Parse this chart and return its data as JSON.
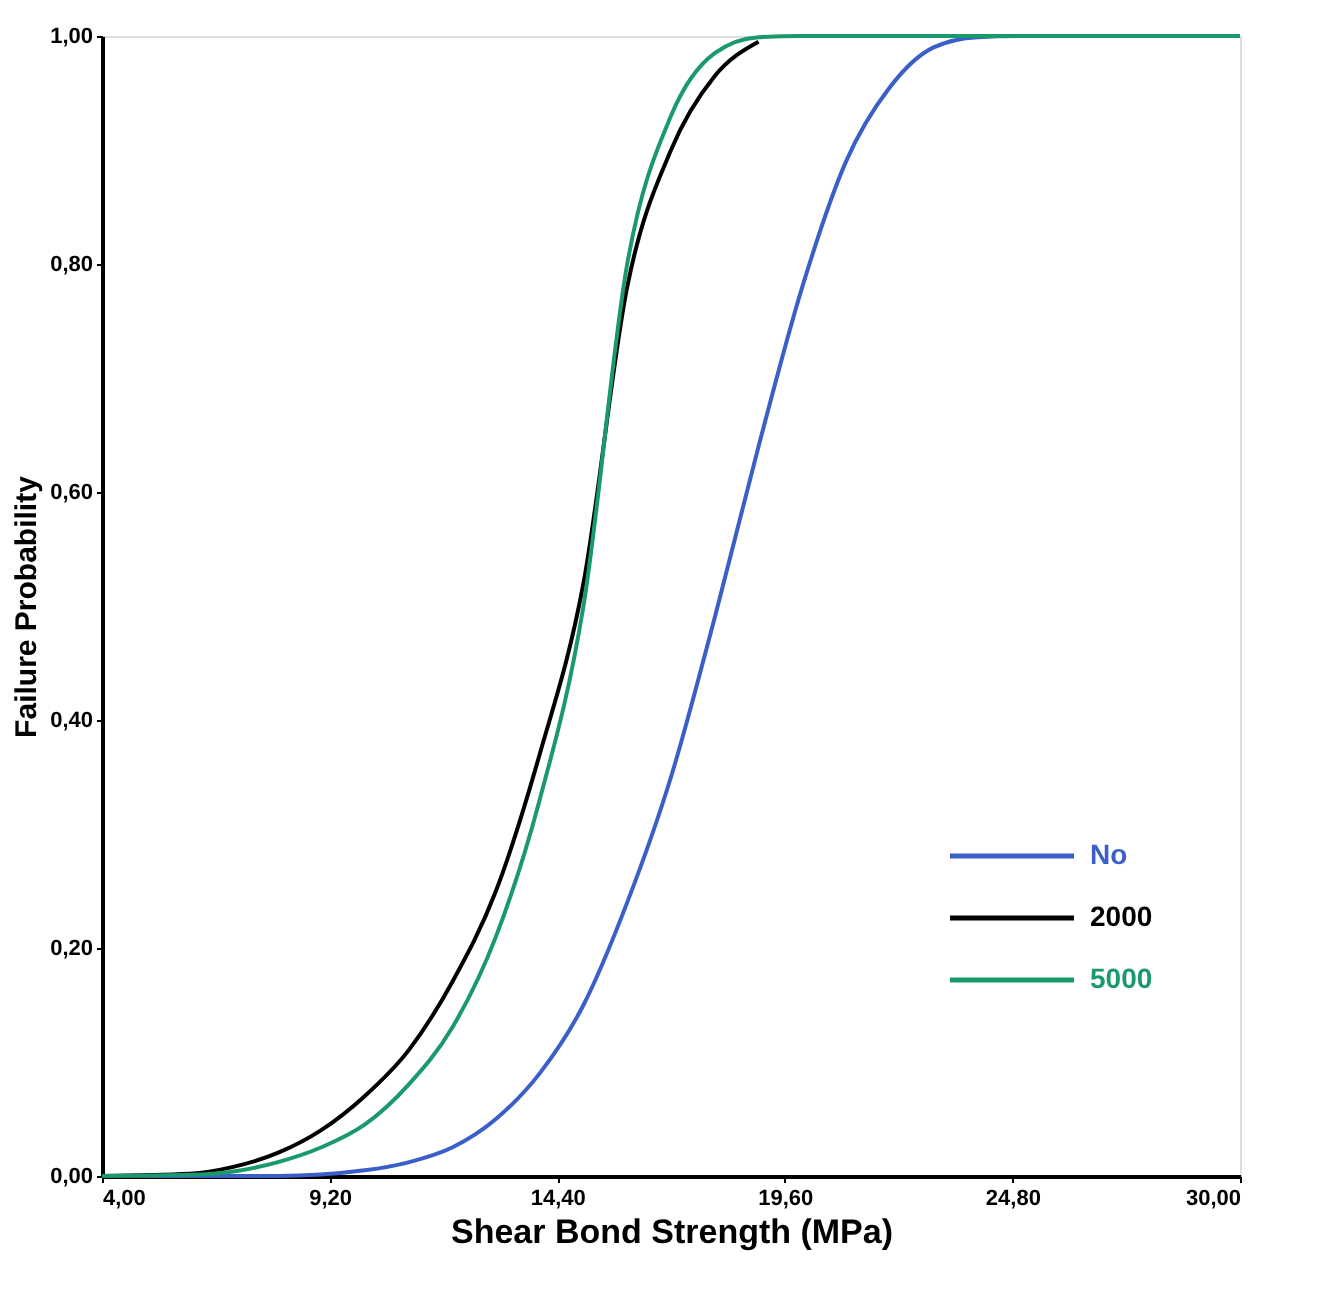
{
  "chart_data": {
    "type": "line",
    "xlabel": "Shear Bond Strength (MPa)",
    "ylabel": "Failure Probability",
    "xlim": [
      4,
      30
    ],
    "xticks": [
      {
        "value": 4,
        "label": "4,00"
      },
      {
        "value": 9.2,
        "label": "9,20"
      },
      {
        "value": 14.4,
        "label": "14,40"
      },
      {
        "value": 19.6,
        "label": "19,60"
      },
      {
        "value": 24.8,
        "label": "24,80"
      },
      {
        "value": 30,
        "label": "30,00"
      }
    ],
    "ylim": [
      0,
      1
    ],
    "yticks": [
      {
        "value": 0,
        "label": "0,00"
      },
      {
        "value": 0.2,
        "label": "0,20"
      },
      {
        "value": 0.4,
        "label": "0,40"
      },
      {
        "value": 0.6,
        "label": "0,60"
      },
      {
        "value": 0.8,
        "label": "0,80"
      },
      {
        "value": 1,
        "label": "1,00"
      }
    ],
    "grid": false,
    "legend": "bottom right",
    "marker": "none",
    "line_style": "solid",
    "series": [
      {
        "name": "No",
        "color": "#3a5fc8",
        "x": [
          4,
          8,
          10,
          11,
          12,
          13,
          14,
          15,
          16,
          17,
          18,
          19,
          20,
          21,
          22,
          23,
          24,
          25,
          30
        ],
        "values": [
          0,
          0,
          0.005,
          0.012,
          0.025,
          0.05,
          0.09,
          0.15,
          0.24,
          0.35,
          0.49,
          0.64,
          0.78,
          0.89,
          0.955,
          0.99,
          0.999,
          1,
          1
        ]
      },
      {
        "name": "2000",
        "color": "#000000",
        "x": [
          4,
          6,
          7,
          8,
          9,
          10,
          11,
          12,
          13,
          14,
          15,
          16,
          17,
          18,
          19
        ],
        "values": [
          0,
          0.002,
          0.008,
          0.02,
          0.04,
          0.07,
          0.11,
          0.17,
          0.25,
          0.37,
          0.52,
          0.78,
          0.9,
          0.965,
          0.995
        ]
      },
      {
        "name": "5000",
        "color": "#1a9a6a",
        "x": [
          4,
          6,
          7,
          8,
          9,
          10,
          11,
          12,
          13,
          14,
          15,
          16,
          17,
          18,
          19,
          20,
          30
        ],
        "values": [
          0,
          0.001,
          0.004,
          0.012,
          0.025,
          0.045,
          0.08,
          0.13,
          0.21,
          0.33,
          0.5,
          0.8,
          0.93,
          0.985,
          0.999,
          1,
          1
        ]
      }
    ]
  }
}
